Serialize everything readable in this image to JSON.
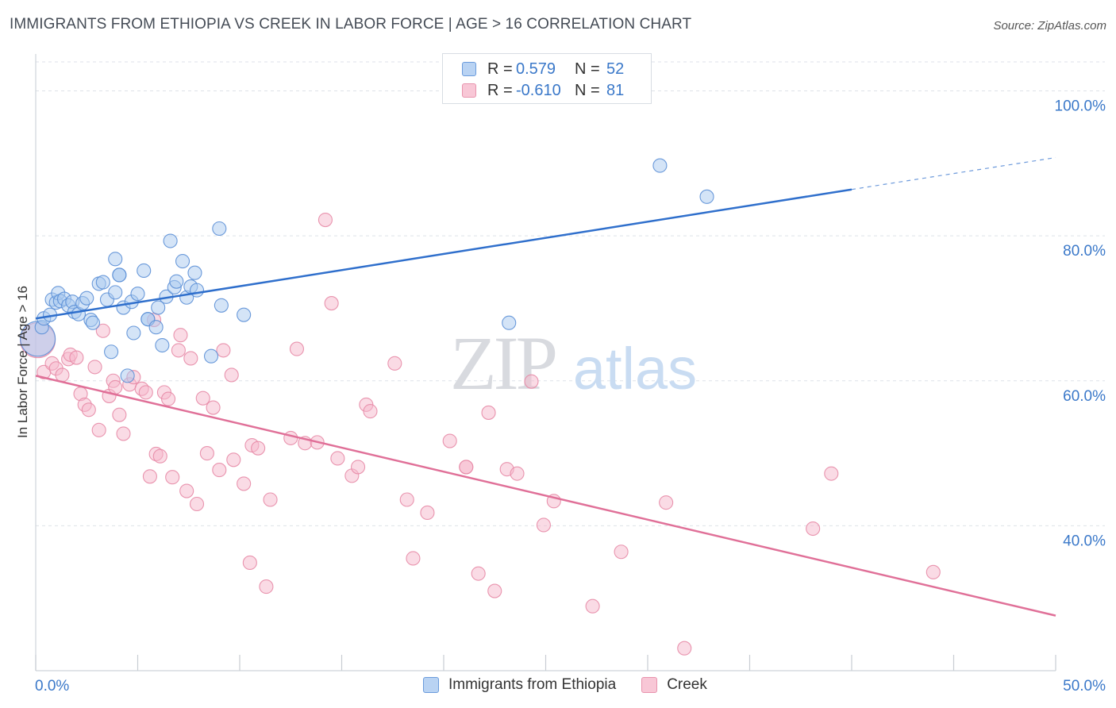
{
  "header": {
    "title": "IMMIGRANTS FROM ETHIOPIA VS CREEK IN LABOR FORCE | AGE > 16 CORRELATION CHART",
    "source": "Source: ZipAtlas.com"
  },
  "watermark": {
    "zip": "ZIP",
    "atlas": "atlas"
  },
  "legend": {
    "rows": [
      {
        "r_label": "R =",
        "r_value": "0.579",
        "n_label": "N =",
        "n_value": "52"
      },
      {
        "r_label": "R =",
        "r_value": "-0.610",
        "n_label": "N =",
        "n_value": "81"
      }
    ]
  },
  "bottom_legend": {
    "items": [
      "Immigrants from Ethiopia",
      "Creek"
    ]
  },
  "colors": {
    "blue_fill": "#a9c9f0",
    "blue_stroke": "#5b8fd6",
    "blue_line": "#2f6fcc",
    "pink_fill": "#f5b8cb",
    "pink_stroke": "#e78aa6",
    "pink_line": "#e07098",
    "tick_label": "#3a78c9",
    "grid": "#dde2e8"
  },
  "chart_data": {
    "type": "scatter",
    "title": "IMMIGRANTS FROM ETHIOPIA VS CREEK IN LABOR FORCE | AGE > 16 CORRELATION CHART",
    "xlabel": "",
    "ylabel": "In Labor Force | Age > 16",
    "xlim": [
      0,
      50
    ],
    "ylim": [
      20,
      104
    ],
    "x_tick_labels": [
      "0.0%",
      "50.0%"
    ],
    "y_ticks": [
      40,
      60,
      80,
      100
    ],
    "y_tick_labels": [
      "40.0%",
      "60.0%",
      "80.0%",
      "100.0%"
    ],
    "grid": true,
    "legend_position": "top-center",
    "series": [
      {
        "name": "Immigrants from Ethiopia",
        "color": "#a9c9f0",
        "trend": {
          "x": [
            0,
            40,
            50
          ],
          "y": [
            68.6,
            86.4,
            90.8
          ],
          "solid_until": 40
        },
        "points": [
          [
            0.1,
            65.8,
            "big"
          ],
          [
            0.3,
            67.4
          ],
          [
            0.4,
            68.6
          ],
          [
            0.7,
            69.1
          ],
          [
            0.8,
            71.2
          ],
          [
            1.0,
            70.8
          ],
          [
            1.1,
            72.1
          ],
          [
            1.2,
            71.0
          ],
          [
            1.4,
            71.3
          ],
          [
            1.6,
            70.4
          ],
          [
            1.8,
            70.9
          ],
          [
            1.9,
            69.5
          ],
          [
            2.1,
            69.2
          ],
          [
            2.3,
            70.7
          ],
          [
            2.5,
            71.4
          ],
          [
            2.7,
            68.4
          ],
          [
            2.8,
            68.0
          ],
          [
            3.1,
            73.4
          ],
          [
            3.3,
            73.6
          ],
          [
            3.5,
            71.2
          ],
          [
            3.7,
            64.0
          ],
          [
            3.9,
            72.2
          ],
          [
            3.9,
            76.8
          ],
          [
            4.1,
            74.6
          ],
          [
            4.3,
            70.1
          ],
          [
            4.5,
            60.7
          ],
          [
            4.7,
            70.9
          ],
          [
            4.8,
            66.6
          ],
          [
            5.0,
            72.0
          ],
          [
            5.3,
            75.2
          ],
          [
            5.5,
            68.5
          ],
          [
            5.5,
            68.5
          ],
          [
            5.9,
            67.4
          ],
          [
            6.0,
            70.1
          ],
          [
            6.2,
            64.9
          ],
          [
            6.4,
            71.6
          ],
          [
            6.6,
            79.3
          ],
          [
            6.8,
            72.9
          ],
          [
            6.9,
            73.7
          ],
          [
            7.2,
            76.5
          ],
          [
            7.4,
            71.5
          ],
          [
            7.6,
            73.0
          ],
          [
            7.8,
            74.9
          ],
          [
            7.9,
            72.5
          ],
          [
            8.6,
            63.4
          ],
          [
            9.0,
            81.0
          ],
          [
            9.1,
            70.4
          ],
          [
            10.2,
            69.1
          ],
          [
            23.2,
            68.0
          ],
          [
            30.6,
            89.7
          ],
          [
            32.9,
            85.4
          ],
          [
            4.1,
            74.6
          ]
        ]
      },
      {
        "name": "Creek",
        "color": "#f5b8cb",
        "trend": {
          "x": [
            0,
            50
          ],
          "y": [
            60.7,
            27.6
          ]
        },
        "points": [
          [
            0.1,
            65.6,
            "big"
          ],
          [
            0.4,
            61.2
          ],
          [
            0.8,
            62.4
          ],
          [
            1.0,
            61.7
          ],
          [
            1.3,
            60.8
          ],
          [
            1.6,
            63.0
          ],
          [
            1.7,
            63.6
          ],
          [
            2.0,
            63.2
          ],
          [
            2.2,
            58.2
          ],
          [
            2.4,
            56.7
          ],
          [
            2.6,
            56.0
          ],
          [
            2.9,
            61.9
          ],
          [
            3.1,
            53.2
          ],
          [
            3.3,
            66.9
          ],
          [
            3.6,
            57.9
          ],
          [
            3.8,
            60.0
          ],
          [
            3.9,
            59.1
          ],
          [
            4.1,
            55.3
          ],
          [
            4.3,
            52.7
          ],
          [
            4.6,
            59.5
          ],
          [
            4.8,
            60.5
          ],
          [
            5.2,
            58.9
          ],
          [
            5.4,
            58.4
          ],
          [
            5.6,
            46.8
          ],
          [
            5.8,
            68.4
          ],
          [
            5.9,
            49.9
          ],
          [
            6.1,
            49.6
          ],
          [
            6.3,
            58.4
          ],
          [
            6.5,
            57.5
          ],
          [
            6.7,
            46.7
          ],
          [
            7.0,
            64.2
          ],
          [
            7.1,
            66.3
          ],
          [
            7.4,
            44.8
          ],
          [
            7.6,
            63.1
          ],
          [
            7.9,
            43.0
          ],
          [
            8.2,
            57.6
          ],
          [
            8.4,
            50.0
          ],
          [
            8.7,
            56.3
          ],
          [
            9.0,
            47.7
          ],
          [
            9.2,
            64.2
          ],
          [
            9.6,
            60.8
          ],
          [
            9.7,
            49.1
          ],
          [
            10.2,
            45.8
          ],
          [
            10.5,
            34.9
          ],
          [
            10.6,
            51.1
          ],
          [
            10.9,
            50.7
          ],
          [
            11.3,
            31.6
          ],
          [
            11.5,
            43.6
          ],
          [
            12.5,
            52.1
          ],
          [
            12.8,
            64.4
          ],
          [
            13.2,
            51.4
          ],
          [
            13.8,
            51.5
          ],
          [
            14.2,
            82.2
          ],
          [
            14.5,
            70.7
          ],
          [
            14.8,
            49.3
          ],
          [
            15.5,
            46.9
          ],
          [
            15.8,
            48.1
          ],
          [
            16.2,
            56.7
          ],
          [
            16.4,
            55.8
          ],
          [
            17.6,
            62.4
          ],
          [
            18.2,
            43.6
          ],
          [
            18.5,
            35.5
          ],
          [
            19.2,
            41.8
          ],
          [
            20.3,
            51.7
          ],
          [
            21.1,
            48.1
          ],
          [
            21.7,
            33.4
          ],
          [
            22.2,
            55.6
          ],
          [
            22.5,
            31.0
          ],
          [
            23.1,
            47.8
          ],
          [
            23.6,
            47.2
          ],
          [
            24.3,
            59.9
          ],
          [
            24.9,
            40.1
          ],
          [
            25.4,
            43.4
          ],
          [
            27.3,
            28.9
          ],
          [
            28.7,
            36.4
          ],
          [
            30.9,
            43.2
          ],
          [
            31.8,
            23.1
          ],
          [
            38.1,
            39.6
          ],
          [
            39.0,
            47.2
          ],
          [
            44.0,
            33.6
          ],
          [
            21.1,
            48.1
          ]
        ]
      }
    ]
  }
}
